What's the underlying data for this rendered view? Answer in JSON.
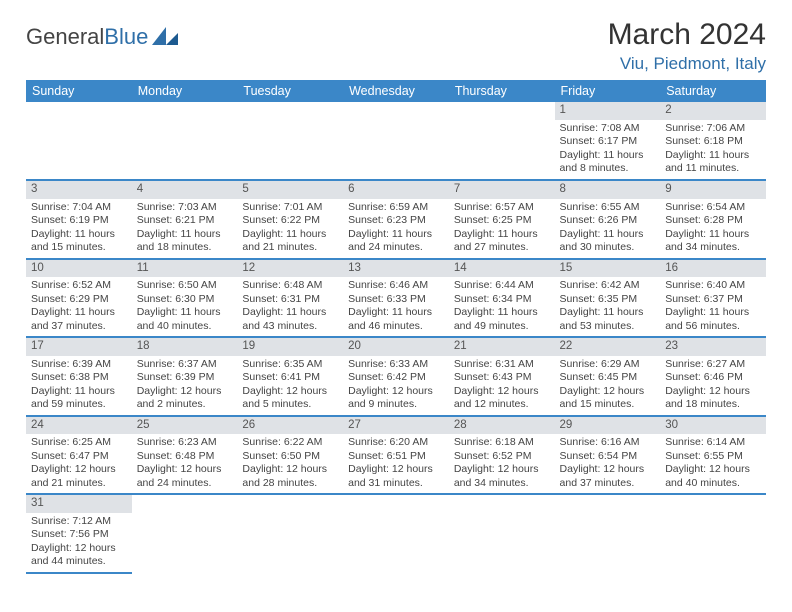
{
  "logo": {
    "text1": "General",
    "text2": "Blue"
  },
  "title": "March 2024",
  "subtitle": "Viu, Piedmont, Italy",
  "colors": {
    "header_bg": "#3b87c8",
    "header_fg": "#ffffff",
    "daynum_bg": "#dfe2e6",
    "row_divider": "#3b87c8",
    "subtitle": "#2f6fa8"
  },
  "weekdays": [
    "Sunday",
    "Monday",
    "Tuesday",
    "Wednesday",
    "Thursday",
    "Friday",
    "Saturday"
  ],
  "rows": [
    [
      null,
      null,
      null,
      null,
      null,
      {
        "n": "1",
        "sr": "Sunrise: 7:08 AM",
        "ss": "Sunset: 6:17 PM",
        "d1": "Daylight: 11 hours",
        "d2": "and 8 minutes."
      },
      {
        "n": "2",
        "sr": "Sunrise: 7:06 AM",
        "ss": "Sunset: 6:18 PM",
        "d1": "Daylight: 11 hours",
        "d2": "and 11 minutes."
      }
    ],
    [
      {
        "n": "3",
        "sr": "Sunrise: 7:04 AM",
        "ss": "Sunset: 6:19 PM",
        "d1": "Daylight: 11 hours",
        "d2": "and 15 minutes."
      },
      {
        "n": "4",
        "sr": "Sunrise: 7:03 AM",
        "ss": "Sunset: 6:21 PM",
        "d1": "Daylight: 11 hours",
        "d2": "and 18 minutes."
      },
      {
        "n": "5",
        "sr": "Sunrise: 7:01 AM",
        "ss": "Sunset: 6:22 PM",
        "d1": "Daylight: 11 hours",
        "d2": "and 21 minutes."
      },
      {
        "n": "6",
        "sr": "Sunrise: 6:59 AM",
        "ss": "Sunset: 6:23 PM",
        "d1": "Daylight: 11 hours",
        "d2": "and 24 minutes."
      },
      {
        "n": "7",
        "sr": "Sunrise: 6:57 AM",
        "ss": "Sunset: 6:25 PM",
        "d1": "Daylight: 11 hours",
        "d2": "and 27 minutes."
      },
      {
        "n": "8",
        "sr": "Sunrise: 6:55 AM",
        "ss": "Sunset: 6:26 PM",
        "d1": "Daylight: 11 hours",
        "d2": "and 30 minutes."
      },
      {
        "n": "9",
        "sr": "Sunrise: 6:54 AM",
        "ss": "Sunset: 6:28 PM",
        "d1": "Daylight: 11 hours",
        "d2": "and 34 minutes."
      }
    ],
    [
      {
        "n": "10",
        "sr": "Sunrise: 6:52 AM",
        "ss": "Sunset: 6:29 PM",
        "d1": "Daylight: 11 hours",
        "d2": "and 37 minutes."
      },
      {
        "n": "11",
        "sr": "Sunrise: 6:50 AM",
        "ss": "Sunset: 6:30 PM",
        "d1": "Daylight: 11 hours",
        "d2": "and 40 minutes."
      },
      {
        "n": "12",
        "sr": "Sunrise: 6:48 AM",
        "ss": "Sunset: 6:31 PM",
        "d1": "Daylight: 11 hours",
        "d2": "and 43 minutes."
      },
      {
        "n": "13",
        "sr": "Sunrise: 6:46 AM",
        "ss": "Sunset: 6:33 PM",
        "d1": "Daylight: 11 hours",
        "d2": "and 46 minutes."
      },
      {
        "n": "14",
        "sr": "Sunrise: 6:44 AM",
        "ss": "Sunset: 6:34 PM",
        "d1": "Daylight: 11 hours",
        "d2": "and 49 minutes."
      },
      {
        "n": "15",
        "sr": "Sunrise: 6:42 AM",
        "ss": "Sunset: 6:35 PM",
        "d1": "Daylight: 11 hours",
        "d2": "and 53 minutes."
      },
      {
        "n": "16",
        "sr": "Sunrise: 6:40 AM",
        "ss": "Sunset: 6:37 PM",
        "d1": "Daylight: 11 hours",
        "d2": "and 56 minutes."
      }
    ],
    [
      {
        "n": "17",
        "sr": "Sunrise: 6:39 AM",
        "ss": "Sunset: 6:38 PM",
        "d1": "Daylight: 11 hours",
        "d2": "and 59 minutes."
      },
      {
        "n": "18",
        "sr": "Sunrise: 6:37 AM",
        "ss": "Sunset: 6:39 PM",
        "d1": "Daylight: 12 hours",
        "d2": "and 2 minutes."
      },
      {
        "n": "19",
        "sr": "Sunrise: 6:35 AM",
        "ss": "Sunset: 6:41 PM",
        "d1": "Daylight: 12 hours",
        "d2": "and 5 minutes."
      },
      {
        "n": "20",
        "sr": "Sunrise: 6:33 AM",
        "ss": "Sunset: 6:42 PM",
        "d1": "Daylight: 12 hours",
        "d2": "and 9 minutes."
      },
      {
        "n": "21",
        "sr": "Sunrise: 6:31 AM",
        "ss": "Sunset: 6:43 PM",
        "d1": "Daylight: 12 hours",
        "d2": "and 12 minutes."
      },
      {
        "n": "22",
        "sr": "Sunrise: 6:29 AM",
        "ss": "Sunset: 6:45 PM",
        "d1": "Daylight: 12 hours",
        "d2": "and 15 minutes."
      },
      {
        "n": "23",
        "sr": "Sunrise: 6:27 AM",
        "ss": "Sunset: 6:46 PM",
        "d1": "Daylight: 12 hours",
        "d2": "and 18 minutes."
      }
    ],
    [
      {
        "n": "24",
        "sr": "Sunrise: 6:25 AM",
        "ss": "Sunset: 6:47 PM",
        "d1": "Daylight: 12 hours",
        "d2": "and 21 minutes."
      },
      {
        "n": "25",
        "sr": "Sunrise: 6:23 AM",
        "ss": "Sunset: 6:48 PM",
        "d1": "Daylight: 12 hours",
        "d2": "and 24 minutes."
      },
      {
        "n": "26",
        "sr": "Sunrise: 6:22 AM",
        "ss": "Sunset: 6:50 PM",
        "d1": "Daylight: 12 hours",
        "d2": "and 28 minutes."
      },
      {
        "n": "27",
        "sr": "Sunrise: 6:20 AM",
        "ss": "Sunset: 6:51 PM",
        "d1": "Daylight: 12 hours",
        "d2": "and 31 minutes."
      },
      {
        "n": "28",
        "sr": "Sunrise: 6:18 AM",
        "ss": "Sunset: 6:52 PM",
        "d1": "Daylight: 12 hours",
        "d2": "and 34 minutes."
      },
      {
        "n": "29",
        "sr": "Sunrise: 6:16 AM",
        "ss": "Sunset: 6:54 PM",
        "d1": "Daylight: 12 hours",
        "d2": "and 37 minutes."
      },
      {
        "n": "30",
        "sr": "Sunrise: 6:14 AM",
        "ss": "Sunset: 6:55 PM",
        "d1": "Daylight: 12 hours",
        "d2": "and 40 minutes."
      }
    ],
    [
      {
        "n": "31",
        "sr": "Sunrise: 7:12 AM",
        "ss": "Sunset: 7:56 PM",
        "d1": "Daylight: 12 hours",
        "d2": "and 44 minutes."
      },
      null,
      null,
      null,
      null,
      null,
      null
    ]
  ]
}
